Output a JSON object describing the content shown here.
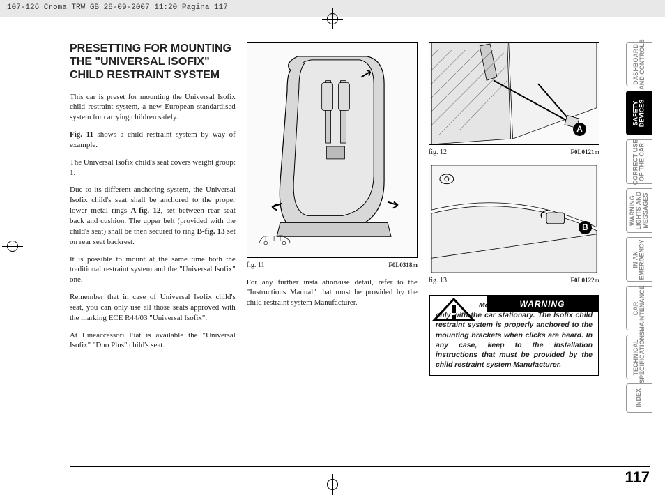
{
  "header_strip": "107-126 Croma TRW GB  28-09-2007  11:20  Pagina 117",
  "heading": "PRESETTING FOR MOUNTING THE \"UNIVERSAL ISOFIX\" CHILD RESTRAINT SYSTEM",
  "col_a": {
    "p1": "This car is preset for mounting the Universal Isofix child restraint system, a new European standardised system for carrying children safely.",
    "p2a": "Fig. 11",
    "p2b": " shows a child restraint system by way of example.",
    "p3": "The Universal Isofix child's seat covers weight group: 1.",
    "p4a": "Due to its different anchoring system, the Universal Isofix child's seat shall be anchored to the proper lower metal rings ",
    "p4b": "A-fig. 12",
    "p4c": ", set between rear seat back and cushion. The upper belt (provided with the child's seat) shall be then secured to ring ",
    "p4d": "B-fig. 13",
    "p4e": " set on rear seat backrest.",
    "p5": "It is possible to mount at the same time both the traditional restraint system and the \"Universal Isofix\" one.",
    "p6": "Remember that in case of Universal Isofix child's seat, you can only use all those seats approved with the marking ECE R44/03 \"Universal Isofix\".",
    "p7": "At Lineaccessori Fiat is available the \"Universal Isofix\" \"Duo Plus\" child's seat."
  },
  "col_b": {
    "fig11_label": "fig. 11",
    "fig11_code": "F0L0318m",
    "p1": "For any further installation/use detail, refer to the \"Instructions Manual\" that must be provided by the child restraint system Manufacturer."
  },
  "col_c": {
    "fig12_label": "fig. 12",
    "fig12_code": "F0L0121m",
    "fig13_label": "fig. 13",
    "fig13_code": "F0L0122m",
    "marker_a": "A",
    "marker_b": "B",
    "warning_title": "WARNING",
    "warning_body": "Mount the child restraint system only with the car stationary. The Isofix child restraint system is properly anchored to the mounting brackets when clicks are heard. In any case, keep to the installation instructions that must be provided by the child restraint system Manufacturer."
  },
  "tabs": [
    {
      "label": "DASHBOARD\nAND CONTROLS",
      "active": false
    },
    {
      "label": "SAFETY\nDEVICES",
      "active": true
    },
    {
      "label": "CORRECT USE\nOF THE CAR",
      "active": false
    },
    {
      "label": "WARNING\nLIGHTS AND\nMESSAGES",
      "active": false
    },
    {
      "label": "IN AN\nEMERGENCY",
      "active": false
    },
    {
      "label": "CAR\nMAINTENANCE",
      "active": false
    },
    {
      "label": "TECHNICAL\nSPECIFICATIONS",
      "active": false
    },
    {
      "label": "INDEX",
      "active": false,
      "short": true
    }
  ],
  "page_number": "117"
}
